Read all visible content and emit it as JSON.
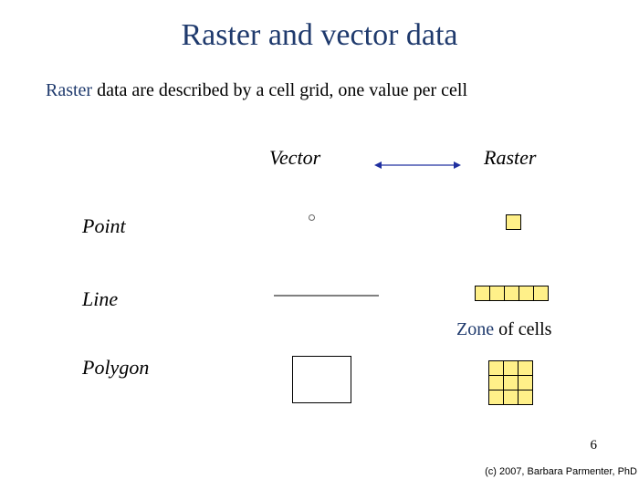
{
  "title": {
    "text": "Raster and vector data",
    "color": "#1f3a6d",
    "fontsize": 34
  },
  "subtitle": {
    "prefix": "Raster",
    "prefix_color": "#1f3a6d",
    "rest": " data are described by a cell grid, one value per cell",
    "rest_color": "#000000",
    "fontsize": 20
  },
  "headers": {
    "vector": "Vector",
    "raster": "Raster",
    "fontsize": 22,
    "color": "#000000",
    "arrow_color": "#2030a0",
    "arrow_width": 95
  },
  "labels": {
    "point": "Point",
    "line": "Line",
    "polygon": "Polygon",
    "fontsize": 22,
    "color": "#000000"
  },
  "zone": {
    "prefix": "Zone",
    "prefix_color": "#1f3a6d",
    "rest": " of cells",
    "rest_color": "#000000",
    "fontsize": 20
  },
  "shapes": {
    "cell_fill": "#fff089",
    "cell_size": 17,
    "line_cell_count": 5,
    "poly_grid_size": 3,
    "polygon_rect": {
      "w": 65,
      "h": 52
    },
    "vector_line_length": 115
  },
  "page_number": {
    "text": "6",
    "fontsize": 15,
    "color": "#000000"
  },
  "copyright": {
    "text": "(c) 2007, Barbara Parmenter, PhD",
    "fontsize": 11,
    "color": "#000000"
  }
}
